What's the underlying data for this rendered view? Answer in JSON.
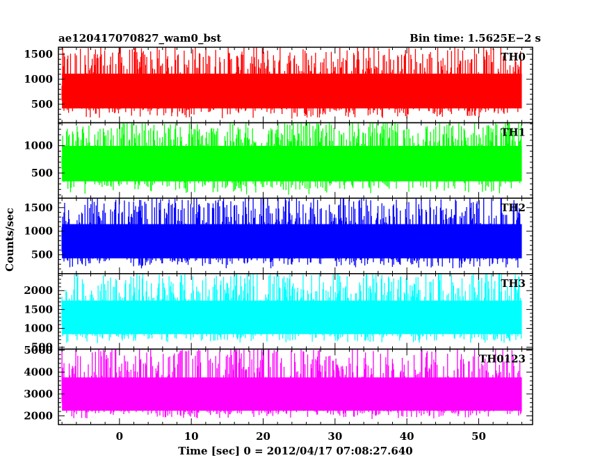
{
  "header": {
    "left_title": "ae120417070827_wam0_bst",
    "right_title": "Bin time: 1.5625E−2 s"
  },
  "chart_data": {
    "type": "line",
    "xlabel": "Time [sec] 0 = 2012/04/17 07:08:27.640",
    "ylabel": "Counts/sec",
    "xlim": [
      -8.5,
      57.5
    ],
    "x_ticks": [
      0,
      10,
      20,
      30,
      40,
      50
    ],
    "x_data_range": [
      -8,
      56
    ],
    "bin_time": 0.015625,
    "panels": [
      {
        "name": "TH0",
        "color": "#ff0000",
        "ylim": [
          130,
          1640
        ],
        "y_ticks": [
          500,
          1000,
          1500
        ],
        "baseline": 680,
        "low": 200,
        "high": 1640
      },
      {
        "name": "TH1",
        "color": "#00ff00",
        "ylim": [
          40,
          1420
        ],
        "y_ticks": [
          500,
          1000
        ],
        "baseline": 650,
        "low": 100,
        "high": 1420
      },
      {
        "name": "TH2",
        "color": "#0000ff",
        "ylim": [
          100,
          1700
        ],
        "y_ticks": [
          500,
          1000,
          1500
        ],
        "baseline": 700,
        "low": 200,
        "high": 1700
      },
      {
        "name": "TH3",
        "color": "#00ffff",
        "ylim": [
          450,
          2450
        ],
        "y_ticks": [
          500,
          1000,
          1500,
          2000
        ],
        "baseline": 1150,
        "low": 600,
        "high": 2450
      },
      {
        "name": "TH0123",
        "color": "#ff00ff",
        "ylim": [
          1600,
          5050
        ],
        "y_ticks": [
          2000,
          3000,
          4000,
          5000
        ],
        "baseline": 2700,
        "low": 1850,
        "high": 5050
      }
    ]
  }
}
